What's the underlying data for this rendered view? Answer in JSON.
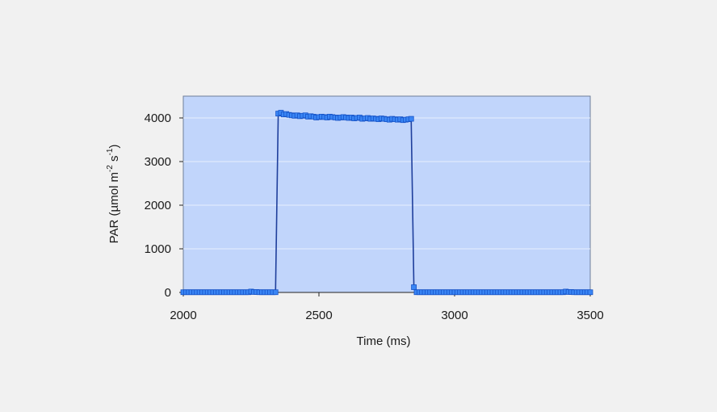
{
  "chart_data": {
    "type": "line",
    "title": "",
    "xlabel": "Time (ms)",
    "ylabel": {
      "base": "PAR (µmol m",
      "sup1": "-2",
      "mid": " s",
      "sup2": "-1",
      "end": ")"
    },
    "xlim": [
      2000,
      3500
    ],
    "ylim": [
      0,
      4500
    ],
    "x_ticks": [
      2000,
      2500,
      3000,
      3500
    ],
    "y_ticks": [
      0,
      1000,
      2000,
      3000,
      4000
    ],
    "grid": "horizontal",
    "legend": "none",
    "colors": {
      "plot_bg": "#c1d5fb",
      "line": "#1f3f9c",
      "marker": "#3a86f5",
      "marker_edge": "#1552c7",
      "grid": "#e6eefc"
    },
    "series": [
      {
        "x": [
          2000,
          2010,
          2020,
          2030,
          2040,
          2050,
          2060,
          2070,
          2080,
          2090,
          2100,
          2110,
          2120,
          2130,
          2140,
          2150,
          2160,
          2170,
          2180,
          2190,
          2200,
          2210,
          2220,
          2230,
          2240,
          2250,
          2260,
          2270,
          2280,
          2290,
          2300,
          2310,
          2320,
          2330,
          2340,
          2350,
          2360,
          2370,
          2380,
          2390,
          2400,
          2410,
          2420,
          2430,
          2440,
          2450,
          2460,
          2470,
          2480,
          2490,
          2500,
          2510,
          2520,
          2530,
          2540,
          2550,
          2560,
          2570,
          2580,
          2590,
          2600,
          2610,
          2620,
          2630,
          2640,
          2650,
          2660,
          2670,
          2680,
          2690,
          2700,
          2710,
          2720,
          2730,
          2740,
          2750,
          2760,
          2770,
          2780,
          2790,
          2800,
          2810,
          2820,
          2830,
          2840,
          2850,
          2860,
          2870,
          2880,
          2890,
          2900,
          2910,
          2920,
          2930,
          2940,
          2950,
          2960,
          2970,
          2980,
          2990,
          3000,
          3010,
          3020,
          3030,
          3040,
          3050,
          3060,
          3070,
          3080,
          3090,
          3100,
          3110,
          3120,
          3130,
          3140,
          3150,
          3160,
          3170,
          3180,
          3190,
          3200,
          3210,
          3220,
          3230,
          3240,
          3250,
          3260,
          3270,
          3280,
          3290,
          3300,
          3310,
          3320,
          3330,
          3340,
          3350,
          3360,
          3370,
          3380,
          3390,
          3400,
          3410,
          3420,
          3430,
          3440,
          3450,
          3460,
          3470,
          3480,
          3490,
          3500
        ],
        "y": [
          5,
          5,
          5,
          5,
          5,
          5,
          5,
          5,
          5,
          5,
          5,
          5,
          5,
          5,
          5,
          5,
          5,
          5,
          5,
          5,
          5,
          5,
          5,
          5,
          5,
          20,
          10,
          10,
          5,
          5,
          5,
          5,
          5,
          5,
          5,
          4100,
          4120,
          4080,
          4090,
          4070,
          4060,
          4050,
          4060,
          4040,
          4050,
          4060,
          4030,
          4040,
          4030,
          4010,
          4020,
          4030,
          4020,
          4010,
          4030,
          4020,
          4010,
          4000,
          4010,
          4020,
          4010,
          4000,
          4010,
          3990,
          4000,
          4010,
          3980,
          3990,
          4000,
          3980,
          3990,
          3980,
          3970,
          3990,
          3980,
          3970,
          3960,
          3980,
          3970,
          3960,
          3970,
          3950,
          3960,
          3970,
          3980,
          120,
          5,
          5,
          5,
          5,
          5,
          5,
          5,
          5,
          5,
          5,
          5,
          5,
          5,
          5,
          5,
          5,
          5,
          5,
          5,
          5,
          5,
          5,
          5,
          5,
          5,
          5,
          5,
          5,
          5,
          5,
          5,
          5,
          5,
          5,
          5,
          5,
          5,
          5,
          5,
          5,
          5,
          5,
          5,
          5,
          5,
          5,
          5,
          5,
          5,
          5,
          5,
          5,
          5,
          5,
          5,
          20,
          10,
          10,
          5,
          5,
          5,
          5,
          5,
          5,
          5
        ]
      }
    ]
  }
}
